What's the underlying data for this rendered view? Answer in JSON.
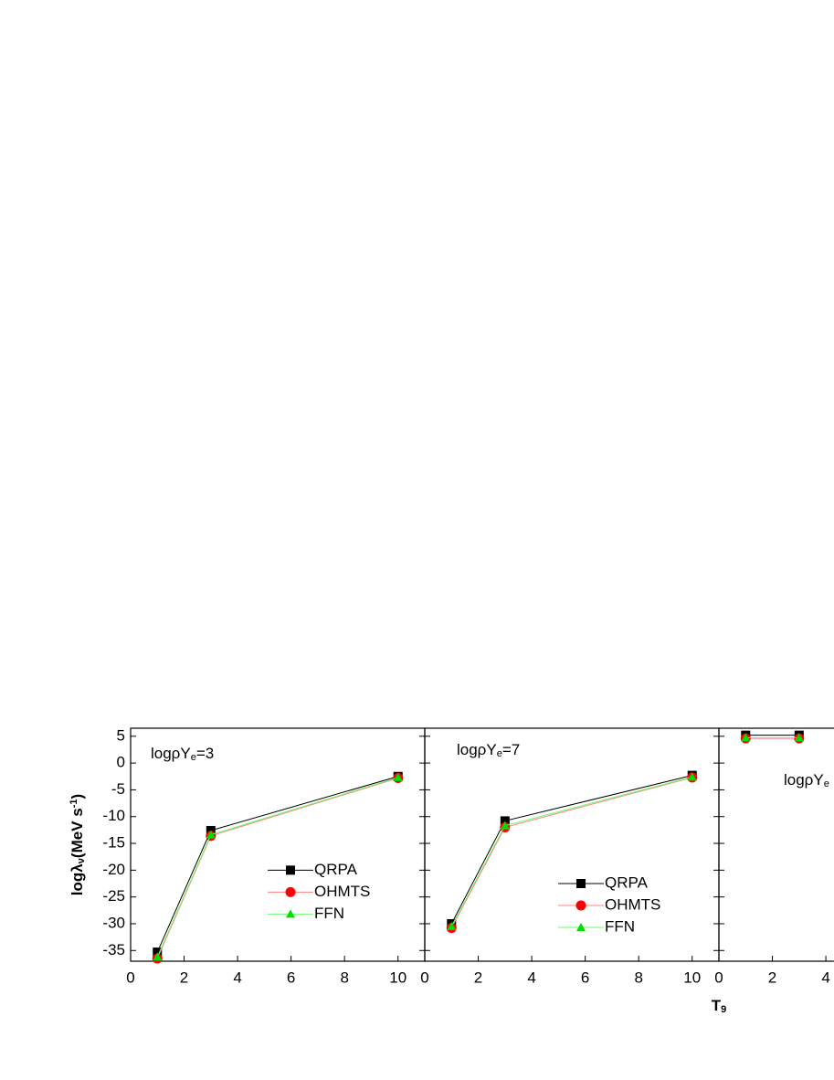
{
  "chart_data": [
    {
      "type": "line",
      "xlim": [
        0,
        11
      ],
      "xticks": [
        0,
        2,
        4,
        6,
        8,
        10
      ],
      "ylim": [
        -37,
        6.5
      ],
      "yticks": [
        -35,
        -30,
        -25,
        -20,
        -15,
        -10,
        -5,
        0,
        5
      ],
      "ylabel": [
        {
          "text": "logλ"
        },
        {
          "text": "ν",
          "style": "sub"
        },
        {
          "text": "(MeV s"
        },
        {
          "text": "-1",
          "style": "sup"
        },
        {
          "text": ")"
        }
      ],
      "annotation": [
        {
          "text": "logρY"
        },
        {
          "text": "e",
          "style": "sub"
        },
        {
          "text": "=3"
        }
      ],
      "x": [
        1,
        3,
        10
      ],
      "series": [
        {
          "name": "QRPA",
          "color": "#000000",
          "line_color": "#000000",
          "marker": "square",
          "values": [
            -35.3,
            -12.6,
            -2.5
          ]
        },
        {
          "name": "OHMTS",
          "color": "#ff0000",
          "line_color": "#ff8080",
          "marker": "circle",
          "values": [
            -36.5,
            -13.6,
            -2.8
          ]
        },
        {
          "name": "FFN",
          "color": "#00dd00",
          "line_color": "#66ff66",
          "marker": "triangle",
          "values": [
            -36.2,
            -13.4,
            -2.7
          ]
        }
      ]
    },
    {
      "type": "line",
      "xlim": [
        0,
        11
      ],
      "xticks": [
        0,
        2,
        4,
        6,
        8,
        10
      ],
      "xlabel": [
        {
          "text": "T"
        },
        {
          "text": "9",
          "style": "sub"
        }
      ],
      "annotation": [
        {
          "text": "logρY"
        },
        {
          "text": "e",
          "style": "sub"
        },
        {
          "text": "=7"
        }
      ],
      "x": [
        1,
        3,
        10
      ],
      "series": [
        {
          "name": "QRPA",
          "color": "#000000",
          "line_color": "#000000",
          "marker": "square",
          "values": [
            -30.0,
            -10.8,
            -2.3
          ]
        },
        {
          "name": "OHMTS",
          "color": "#ff0000",
          "line_color": "#ff8080",
          "marker": "circle",
          "values": [
            -30.8,
            -12.0,
            -2.7
          ]
        },
        {
          "name": "FFN",
          "color": "#00dd00",
          "line_color": "#66ff66",
          "marker": "triangle",
          "values": [
            -30.5,
            -11.7,
            -2.6
          ]
        }
      ]
    },
    {
      "type": "line",
      "xlim": [
        0,
        11
      ],
      "xticks": [
        0,
        2,
        4
      ],
      "annotation": [
        {
          "text": "logρY"
        },
        {
          "text": "e",
          "style": "sub"
        }
      ],
      "x": [
        1,
        3
      ],
      "series": [
        {
          "color": "#000000",
          "line_color": "#000000",
          "marker": "square",
          "values": [
            5.2,
            5.2
          ]
        },
        {
          "color": "#ff0000",
          "line_color": "#ff8080",
          "marker": "circle",
          "values": [
            4.6,
            4.6
          ]
        },
        {
          "color": "#00dd00",
          "line_color": "#66ff66",
          "marker": "triangle",
          "values": [
            4.7,
            4.7
          ]
        }
      ]
    }
  ]
}
